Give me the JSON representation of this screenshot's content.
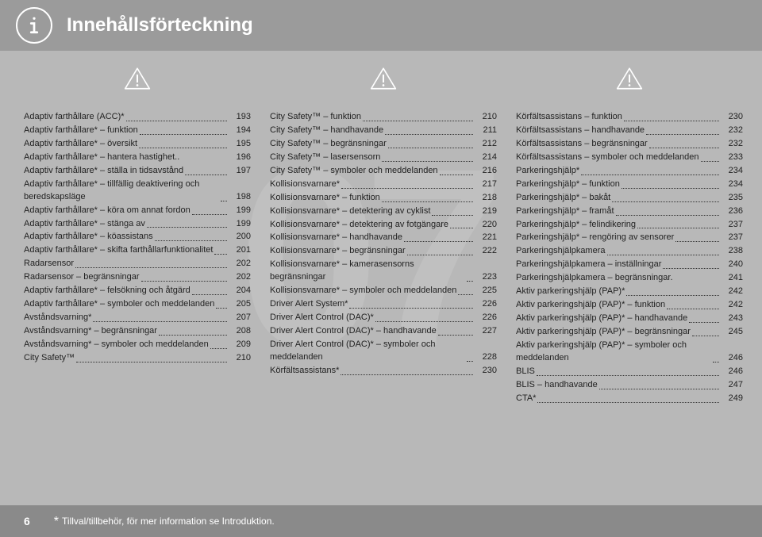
{
  "header": {
    "title": "Innehållsförteckning"
  },
  "watermark": "07",
  "columns": [
    [
      {
        "label": "Adaptiv farthållare (ACC)*",
        "page": "193"
      },
      {
        "label": "Adaptiv farthållare* – funktion",
        "page": "194"
      },
      {
        "label": "Adaptiv farthållare* – översikt",
        "page": "195"
      },
      {
        "label": "Adaptiv farthållare* – hantera hastighet..",
        "page": "196",
        "nodots": true
      },
      {
        "label": "Adaptiv farthållare* – ställa in tidsavstånd",
        "page": "197"
      },
      {
        "label": "Adaptiv farthållare* – tillfällig deaktivering och beredskapsläge",
        "page": "198"
      },
      {
        "label": "Adaptiv farthållare* – köra om annat fordon",
        "page": "199"
      },
      {
        "label": "Adaptiv farthållare* – stänga av",
        "page": "199"
      },
      {
        "label": "Adaptiv farthållare* – köassistans",
        "page": "200"
      },
      {
        "label": "Adaptiv farthållare* – skifta farthållarfunktionalitet",
        "page": "201"
      },
      {
        "label": "Radarsensor",
        "page": "202"
      },
      {
        "label": "Radarsensor – begränsningar",
        "page": "202"
      },
      {
        "label": "Adaptiv farthållare* – felsökning och åtgärd",
        "page": "204"
      },
      {
        "label": "Adaptiv farthållare* – symboler och meddelanden",
        "page": "205"
      },
      {
        "label": "Avståndsvarning*",
        "page": "207"
      },
      {
        "label": "Avståndsvarning* – begränsningar",
        "page": "208"
      },
      {
        "label": "Avståndsvarning* – symboler och meddelanden",
        "page": "209"
      },
      {
        "label": "City Safety™",
        "page": "210"
      }
    ],
    [
      {
        "label": "City Safety™ – funktion",
        "page": "210"
      },
      {
        "label": "City Safety™ – handhavande",
        "page": "211"
      },
      {
        "label": "City Safety™ – begränsningar",
        "page": "212"
      },
      {
        "label": "City Safety™ – lasersensorn",
        "page": "214"
      },
      {
        "label": "City Safety™ – symboler och meddelanden",
        "page": "216"
      },
      {
        "label": "Kollisionsvarnare*",
        "page": "217"
      },
      {
        "label": "Kollisionsvarnare* – funktion",
        "page": "218"
      },
      {
        "label": "Kollisionsvarnare* – detektering av cyklist",
        "page": "219"
      },
      {
        "label": "Kollisionsvarnare* – detektering av fotgängare",
        "page": "220"
      },
      {
        "label": "Kollisionsvarnare* – handhavande",
        "page": "221"
      },
      {
        "label": "Kollisionsvarnare* – begränsningar",
        "page": "222"
      },
      {
        "label": "Kollisionsvarnare* – kamerasensorns begränsningar",
        "page": "223"
      },
      {
        "label": "Kollisionsvarnare* – symboler och meddelanden",
        "page": "225"
      },
      {
        "label": "Driver Alert System*",
        "page": "226"
      },
      {
        "label": "Driver Alert Control (DAC)*",
        "page": "226"
      },
      {
        "label": "Driver Alert Control (DAC)* – handhavande",
        "page": "227"
      },
      {
        "label": "Driver Alert Control (DAC)* – symboler och meddelanden",
        "page": "228"
      },
      {
        "label": "Körfältsassistans*",
        "page": "230"
      }
    ],
    [
      {
        "label": "Körfältsassistans – funktion",
        "page": "230"
      },
      {
        "label": "Körfältsassistans – handhavande",
        "page": "232"
      },
      {
        "label": "Körfältsassistans – begränsningar",
        "page": "232"
      },
      {
        "label": "Körfältsassistans – symboler och meddelanden",
        "page": "233"
      },
      {
        "label": "Parkeringshjälp*",
        "page": "234"
      },
      {
        "label": "Parkeringshjälp* – funktion",
        "page": "234"
      },
      {
        "label": "Parkeringshjälp* – bakåt",
        "page": "235"
      },
      {
        "label": "Parkeringshjälp* – framåt",
        "page": "236"
      },
      {
        "label": "Parkeringshjälp* – felindikering",
        "page": "237"
      },
      {
        "label": "Parkeringshjälp* – rengöring av sensorer",
        "page": "237"
      },
      {
        "label": "Parkeringshjälpkamera",
        "page": "238"
      },
      {
        "label": "Parkeringshjälpkamera – inställningar",
        "page": "240"
      },
      {
        "label": "Parkeringshjälpkamera – begränsningar.",
        "page": "241",
        "nodots": true
      },
      {
        "label": "Aktiv parkeringshjälp (PAP)*",
        "page": "242"
      },
      {
        "label": "Aktiv parkeringshjälp (PAP)* – funktion",
        "page": "242"
      },
      {
        "label": "Aktiv parkeringshjälp (PAP)* – handhavande",
        "page": "243"
      },
      {
        "label": "Aktiv parkeringshjälp (PAP)* – begränsningar",
        "page": "245"
      },
      {
        "label": "Aktiv parkeringshjälp (PAP)* – symboler och meddelanden",
        "page": "246"
      },
      {
        "label": "BLIS",
        "page": "246"
      },
      {
        "label": "BLIS – handhavande",
        "page": "247"
      },
      {
        "label": "CTA*",
        "page": "249"
      }
    ]
  ],
  "footer": {
    "page_number": "6",
    "star": "*",
    "note": "Tillval/tillbehör, för mer information se Introduktion."
  },
  "icon_stroke": "#ffffff"
}
